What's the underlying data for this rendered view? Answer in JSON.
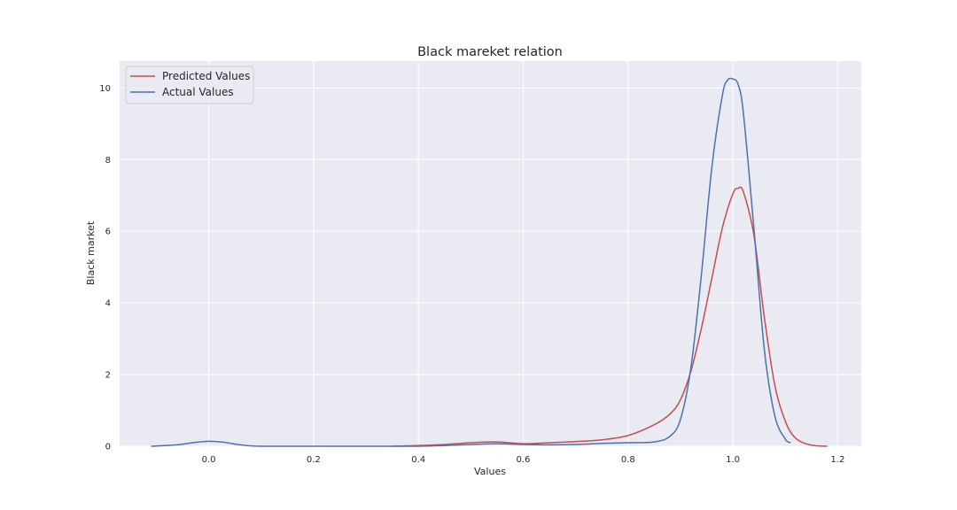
{
  "chart_data": {
    "type": "line",
    "title": "Black mareket relation",
    "xlabel": "Values",
    "ylabel": "Black market",
    "xlim": [
      -0.17,
      1.245
    ],
    "ylim": [
      0,
      10.75
    ],
    "xticks": [
      0.0,
      0.2,
      0.4,
      0.6,
      0.8,
      1.0,
      1.2
    ],
    "xtick_labels": [
      "0.0",
      "0.2",
      "0.4",
      "0.6",
      "0.8",
      "1.0",
      "1.2"
    ],
    "yticks": [
      0,
      2,
      4,
      6,
      8,
      10
    ],
    "ytick_labels": [
      "0",
      "2",
      "4",
      "6",
      "8",
      "10"
    ],
    "grid": true,
    "legend_position": "top-left",
    "colors": {
      "background": "#eaeaf2",
      "grid": "#ffffff",
      "predicted": "#c44e52",
      "actual": "#4c72b0"
    },
    "series": [
      {
        "name": "Predicted Values",
        "color": "#c44e52",
        "x": [
          0.35,
          0.4,
          0.45,
          0.5,
          0.55,
          0.6,
          0.65,
          0.7,
          0.75,
          0.8,
          0.85,
          0.88,
          0.9,
          0.92,
          0.94,
          0.96,
          0.98,
          1.0,
          1.01,
          1.02,
          1.04,
          1.06,
          1.08,
          1.1,
          1.12,
          1.15,
          1.18
        ],
        "y": [
          0.0,
          0.02,
          0.05,
          0.1,
          0.12,
          0.07,
          0.1,
          0.13,
          0.18,
          0.3,
          0.6,
          0.9,
          1.3,
          2.1,
          3.3,
          4.7,
          6.1,
          7.05,
          7.2,
          7.1,
          5.9,
          3.6,
          1.7,
          0.7,
          0.22,
          0.03,
          0.0
        ]
      },
      {
        "name": "Actual Values",
        "color": "#4c72b0",
        "x": [
          -0.11,
          -0.06,
          -0.03,
          0.0,
          0.03,
          0.06,
          0.1,
          0.2,
          0.3,
          0.4,
          0.45,
          0.5,
          0.55,
          0.6,
          0.65,
          0.7,
          0.75,
          0.8,
          0.85,
          0.88,
          0.9,
          0.92,
          0.94,
          0.96,
          0.98,
          0.99,
          1.0,
          1.01,
          1.02,
          1.04,
          1.06,
          1.08,
          1.1,
          1.11
        ],
        "y": [
          0.0,
          0.04,
          0.1,
          0.14,
          0.11,
          0.04,
          0.0,
          0.0,
          0.0,
          0.0,
          0.02,
          0.05,
          0.07,
          0.05,
          0.04,
          0.05,
          0.08,
          0.1,
          0.12,
          0.28,
          0.75,
          2.2,
          4.8,
          7.8,
          9.8,
          10.22,
          10.25,
          10.1,
          9.3,
          6.1,
          2.7,
          0.85,
          0.2,
          0.1
        ]
      }
    ]
  }
}
